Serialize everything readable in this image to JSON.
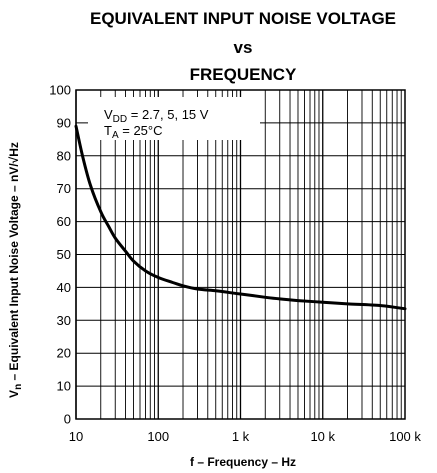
{
  "chart_data": {
    "type": "line",
    "title_lines": [
      "EQUIVALENT INPUT NOISE VOLTAGE",
      "vs",
      "FREQUENCY"
    ],
    "xlabel": "f – Frequency – Hz",
    "ylabel": {
      "symbol": "V",
      "symbol_sub": "n",
      "text": " – Equivalent Input Noise Voltage – nV/",
      "root": "√",
      "unit": "Hz"
    },
    "xscale": "log",
    "xlim": [
      10,
      100000
    ],
    "ylim": [
      0,
      100
    ],
    "x_ticks": [
      10,
      100,
      1000,
      10000,
      100000
    ],
    "x_tick_labels": [
      "10",
      "100",
      "1 k",
      "10 k",
      "100 k"
    ],
    "y_ticks": [
      0,
      10,
      20,
      30,
      40,
      50,
      60,
      70,
      80,
      90,
      100
    ],
    "y_tick_labels": [
      "0",
      "10",
      "20",
      "30",
      "40",
      "50",
      "60",
      "70",
      "80",
      "90",
      "100"
    ],
    "grid": true,
    "annotation": {
      "line1": {
        "main": "V",
        "sub": "DD",
        "rest": " = 2.7, 5, 15 V"
      },
      "line2": {
        "main": "T",
        "sub": "A",
        "rest": " = 25°C"
      }
    },
    "series": [
      {
        "x": [
          10,
          12,
          15,
          20,
          25,
          30,
          40,
          50,
          70,
          100,
          150,
          200,
          300,
          500,
          700,
          1000,
          2000,
          3000,
          5000,
          10000,
          20000,
          50000,
          100000
        ],
        "y": [
          89,
          80,
          71,
          63,
          58.5,
          55,
          51,
          48,
          45,
          43,
          41.5,
          40.5,
          39.5,
          39,
          38.5,
          38,
          37,
          36.5,
          36,
          35.5,
          35,
          34.5,
          33.5
        ]
      }
    ]
  }
}
